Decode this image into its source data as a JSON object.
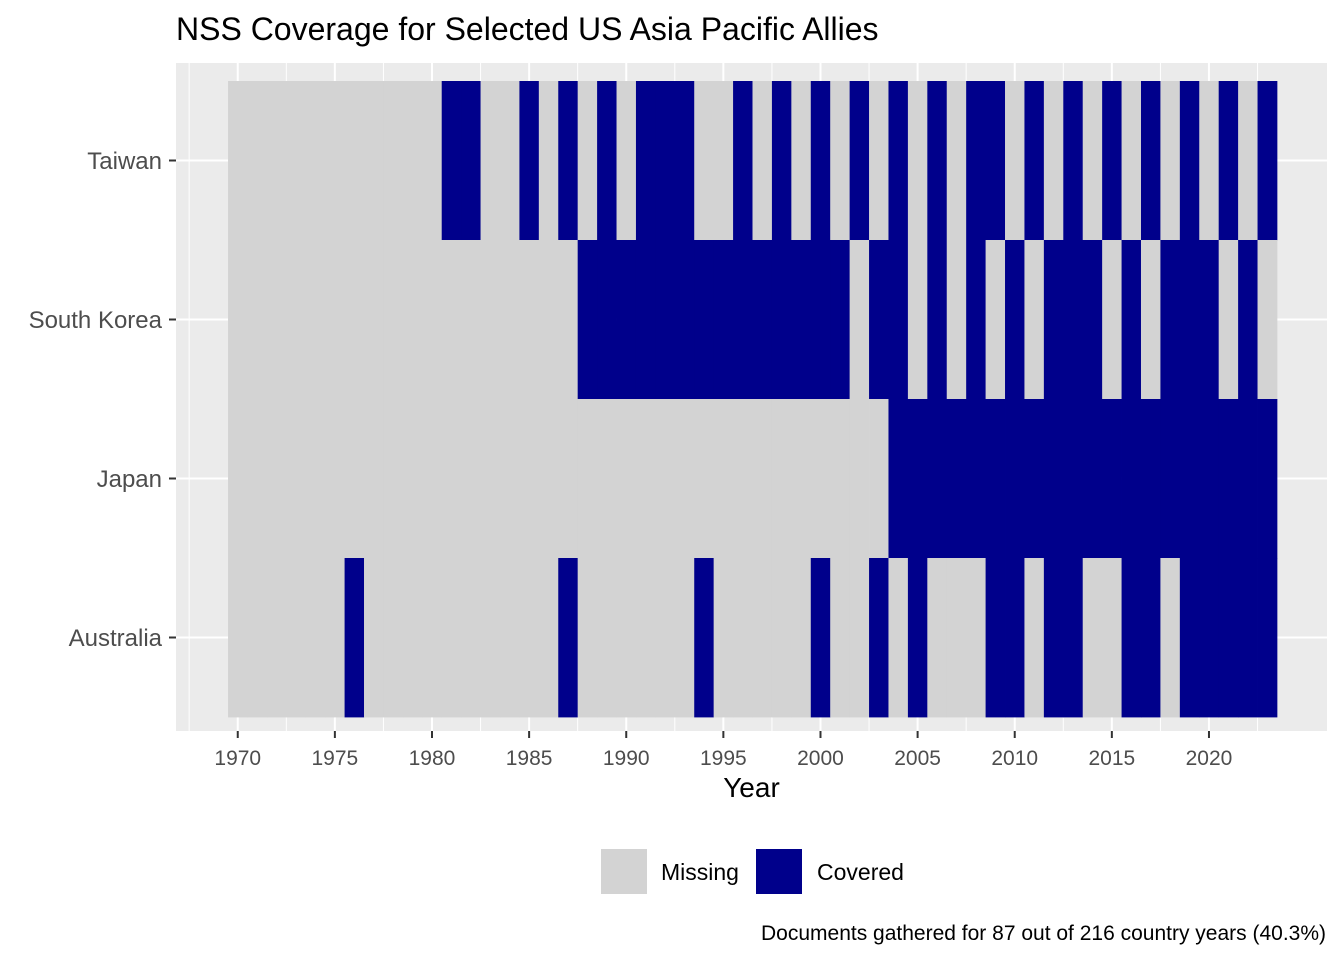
{
  "chart_data": {
    "type": "heatmap",
    "title": "NSS Coverage for Selected US Asia Pacific Allies",
    "xlabel": "Year",
    "ylabel": "",
    "caption": "Documents gathered for 87 out of 216 country years (40.3%)",
    "x_range": [
      1970,
      2023
    ],
    "xticks": [
      1970,
      1975,
      1980,
      1985,
      1990,
      1995,
      2000,
      2005,
      2010,
      2015,
      2020
    ],
    "categories": [
      "Australia",
      "Japan",
      "South Korea",
      "Taiwan"
    ],
    "grid": true,
    "legend_position": "bottom",
    "colors": {
      "Missing": "#d3d3d3",
      "Covered": "#00008b"
    },
    "legend": [
      {
        "label": "Missing",
        "color": "#d3d3d3"
      },
      {
        "label": "Covered",
        "color": "#00008b"
      }
    ],
    "series": [
      {
        "name": "Taiwan",
        "covered_years": [
          1981,
          1982,
          1985,
          1987,
          1989,
          1991,
          1992,
          1993,
          1996,
          1998,
          2000,
          2002,
          2004,
          2006,
          2008,
          2009,
          2011,
          2013,
          2015,
          2017,
          2019,
          2021,
          2023
        ]
      },
      {
        "name": "South Korea",
        "covered_years": [
          1988,
          1989,
          1990,
          1991,
          1992,
          1993,
          1994,
          1995,
          1996,
          1997,
          1998,
          1999,
          2000,
          2001,
          2003,
          2004,
          2006,
          2008,
          2010,
          2012,
          2013,
          2014,
          2016,
          2018,
          2019,
          2020,
          2022
        ]
      },
      {
        "name": "Japan",
        "covered_years": [
          2004,
          2005,
          2006,
          2007,
          2008,
          2009,
          2010,
          2011,
          2012,
          2013,
          2014,
          2015,
          2016,
          2017,
          2018,
          2019,
          2020,
          2021,
          2022,
          2023
        ]
      },
      {
        "name": "Australia",
        "covered_years": [
          1976,
          1987,
          1994,
          2000,
          2003,
          2005,
          2009,
          2010,
          2012,
          2013,
          2016,
          2017,
          2019,
          2020,
          2021,
          2022,
          2023
        ]
      }
    ]
  }
}
